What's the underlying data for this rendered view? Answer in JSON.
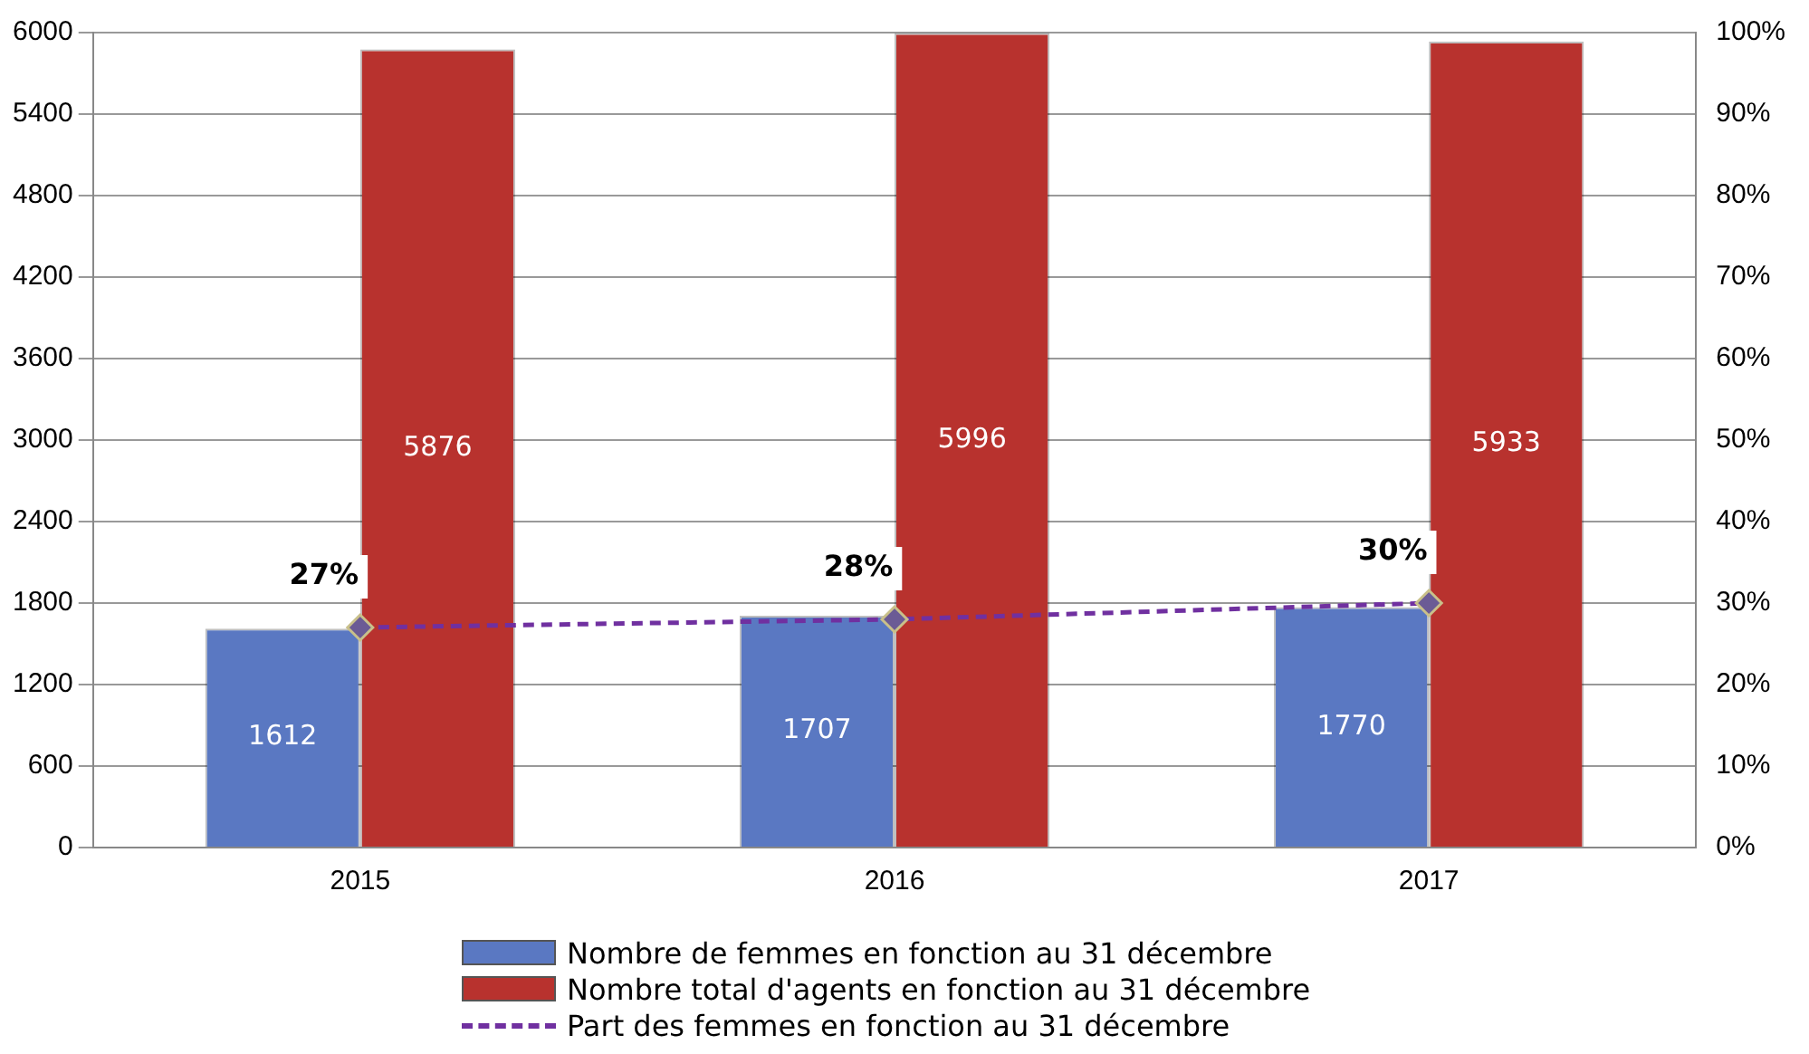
{
  "chart_data": {
    "type": "bar",
    "categories": [
      "2015",
      "2016",
      "2017"
    ],
    "series": [
      {
        "name": "Nombre de femmes en fonction au 31 décembre",
        "color": "#5a78c2",
        "values": [
          1612,
          1707,
          1770
        ],
        "value_labels": [
          "1612",
          "1707",
          "1770"
        ]
      },
      {
        "name": "Nombre total d'agents en fonction au 31 décembre",
        "color": "#b8322e",
        "values": [
          5876,
          5996,
          5933
        ],
        "value_labels": [
          "5876",
          "5996",
          "5933"
        ]
      },
      {
        "name": "Part des femmes en fonction au 31 décembre",
        "type": "line",
        "axis": "y2",
        "color": "#7030a0",
        "values": [
          27,
          28,
          30
        ],
        "value_labels": [
          "27%",
          "28%",
          "30%"
        ],
        "marker": "diamond",
        "line_style": "dashed"
      }
    ],
    "ylim": [
      0,
      6000
    ],
    "yticks": [
      0,
      600,
      1200,
      1800,
      2400,
      3000,
      3600,
      4200,
      4800,
      5400,
      6000
    ],
    "y2lim": [
      0,
      100
    ],
    "y2ticks": [
      {
        "value": 0,
        "label": "0%"
      },
      {
        "value": 10,
        "label": "10%"
      },
      {
        "value": 20,
        "label": "20%"
      },
      {
        "value": 30,
        "label": "30%"
      },
      {
        "value": 40,
        "label": "40%"
      },
      {
        "value": 50,
        "label": "50%"
      },
      {
        "value": 60,
        "label": "60%"
      },
      {
        "value": 70,
        "label": "70%"
      },
      {
        "value": 80,
        "label": "80%"
      },
      {
        "value": 90,
        "label": "90%"
      },
      {
        "value": 100,
        "label": "100%"
      }
    ],
    "grid": "y",
    "legend": "bottom"
  }
}
